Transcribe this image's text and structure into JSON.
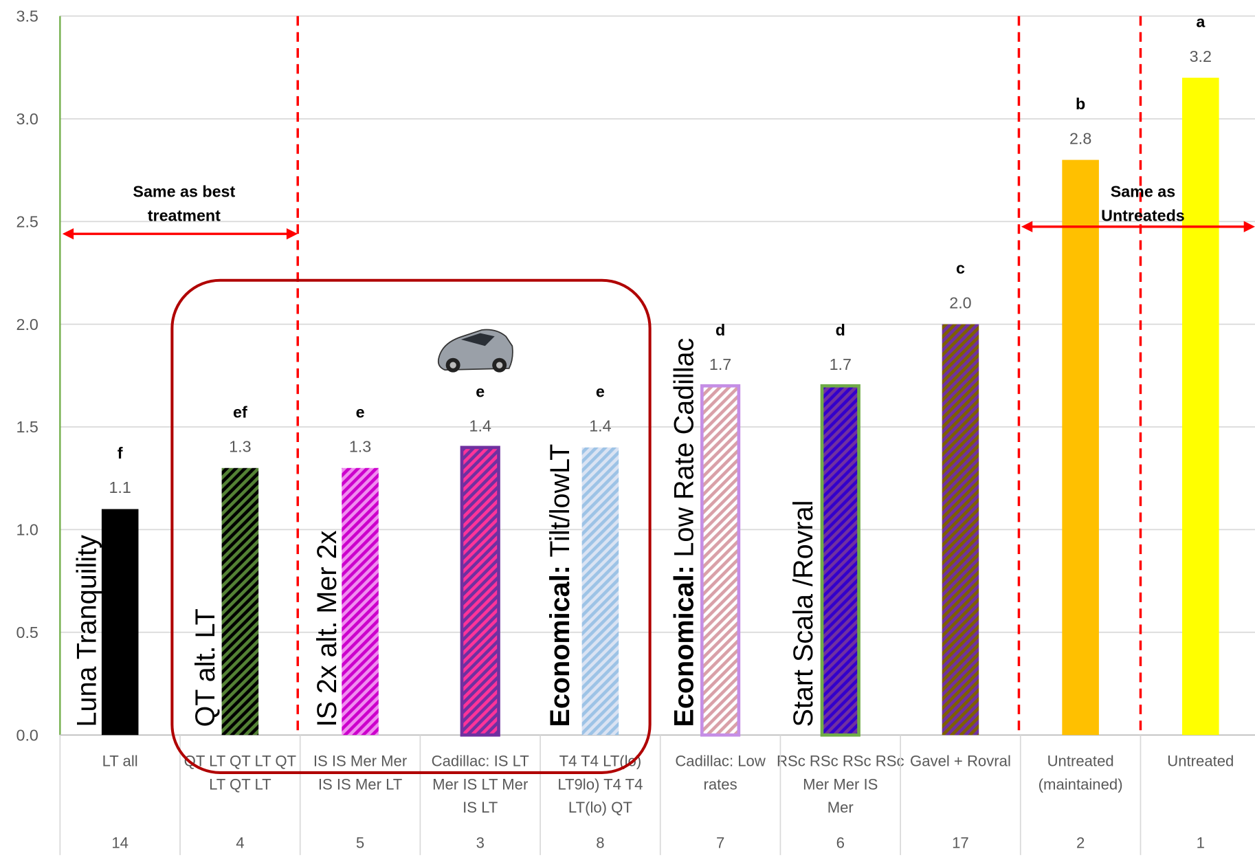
{
  "chart_data": {
    "type": "bar",
    "categories": [
      [
        "LT all"
      ],
      [
        "QT LT QT LT QT",
        "LT QT LT"
      ],
      [
        "IS IS Mer Mer",
        "IS IS Mer LT"
      ],
      [
        "Cadillac: IS LT",
        "Mer IS LT Mer",
        "IS LT"
      ],
      [
        "T4 T4 LT(lo)",
        "LT9lo) T4 T4",
        "LT(lo) QT"
      ],
      [
        "Cadillac: Low",
        "rates"
      ],
      [
        "RSc RSc RSc RSc",
        "Mer Mer IS",
        "Mer"
      ],
      [
        "Gavel + Rovral"
      ],
      [
        "Untreated",
        "(maintained)"
      ],
      [
        "Untreated"
      ]
    ],
    "treatment_numbers": [
      14,
      4,
      5,
      3,
      8,
      7,
      6,
      17,
      2,
      1
    ],
    "values": [
      1.1,
      1.3,
      1.3,
      1.4,
      1.4,
      1.7,
      1.7,
      2.0,
      2.8,
      3.2
    ],
    "value_labels": [
      "1.1",
      "1.3",
      "1.3",
      "1.4",
      "1.4",
      "1.7",
      "1.7",
      "2.0",
      "2.8",
      "3.2"
    ],
    "letters": [
      "f",
      "ef",
      "e",
      "e",
      "e",
      "d",
      "d",
      "c",
      "b",
      "a"
    ],
    "colors": [
      "#000000",
      "#000000",
      "#f08cf0",
      "#7030a0",
      "#dae3f3",
      "#ffffff",
      "#3300cc",
      "#7030a0",
      "#ffc000",
      "#ffff00"
    ],
    "hatch_colors": [
      null,
      "#548235",
      "#cc00cc",
      "#ff3399",
      "#9dc3e6",
      "#d9a0a8",
      "#7030a0",
      "#7f6000",
      null,
      null
    ],
    "edge_colors": [
      null,
      null,
      null,
      "#7030a0",
      null,
      "#c58ee6",
      "#70ad47",
      null,
      null,
      null
    ],
    "ylim": [
      0,
      3.5
    ],
    "yticks": [
      {
        "value": 0,
        "label": "0.0"
      },
      {
        "value": 0.5,
        "label": "0.5"
      },
      {
        "value": 1,
        "label": "1.0"
      },
      {
        "value": 1.5,
        "label": "1.5"
      },
      {
        "value": 2,
        "label": "2.0"
      },
      {
        "value": 2.5,
        "label": "2.5"
      },
      {
        "value": 3,
        "label": "3.0"
      },
      {
        "value": 3.5,
        "label": "3.5"
      }
    ],
    "grid": true,
    "vertical_labels": [
      {
        "text": "Luna Tranquility"
      },
      {
        "text": "QT alt. LT"
      },
      {
        "text": "IS 2x alt. Mer 2x"
      },
      {
        "bold": "Economical:",
        "text": "Tilt/lowLT"
      },
      {
        "bold": "Economical:",
        "text": "Low Rate Cadillac"
      },
      {
        "text": "Start Scala /Rovral"
      }
    ],
    "annotations": [
      [
        "Same as best",
        "treatment"
      ],
      [
        "Same as",
        "Untreateds"
      ]
    ]
  }
}
